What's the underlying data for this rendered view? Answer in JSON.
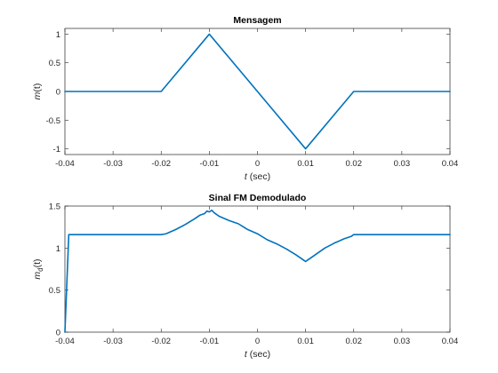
{
  "chart_data": [
    {
      "type": "line",
      "title": "Mensagem",
      "xlabel_italic": "t",
      "xlabel_rest": " (sec)",
      "ylabel_italic": "m",
      "ylabel_rest": "(t)",
      "xlim": [
        -0.04,
        0.04
      ],
      "ylim": [
        -1.1,
        1.1
      ],
      "xticks": [
        -0.04,
        -0.03,
        -0.02,
        -0.01,
        0,
        0.01,
        0.02,
        0.03,
        0.04
      ],
      "xtick_labels": [
        "-0.04",
        "-0.03",
        "-0.02",
        "-0.01",
        "0",
        "0.01",
        "0.02",
        "0.03",
        "0.04"
      ],
      "yticks": [
        -1,
        -0.5,
        0,
        0.5,
        1
      ],
      "ytick_labels": [
        "-1",
        "-0.5",
        "0",
        "0.5",
        "1"
      ],
      "grid": false,
      "color": "#0072BD",
      "series": [
        {
          "x": [
            -0.04,
            -0.02,
            -0.01,
            0.01,
            0.02,
            0.04
          ],
          "y": [
            0,
            0,
            1,
            -1,
            0,
            0
          ]
        }
      ]
    },
    {
      "type": "line",
      "title": "Sinal FM Demodulado",
      "xlabel_italic": "t",
      "xlabel_rest": " (sec)",
      "ylabel_italic": "m",
      "ylabel_sub": "d",
      "ylabel_rest": "(t)",
      "xlim": [
        -0.04,
        0.04
      ],
      "ylim": [
        0,
        1.5
      ],
      "xticks": [
        -0.04,
        -0.03,
        -0.02,
        -0.01,
        0,
        0.01,
        0.02,
        0.03,
        0.04
      ],
      "xtick_labels": [
        "-0.04",
        "-0.03",
        "-0.02",
        "-0.01",
        "0",
        "0.01",
        "0.02",
        "0.03",
        "0.04"
      ],
      "yticks": [
        0,
        0.5,
        1,
        1.5
      ],
      "ytick_labels": [
        "0",
        "0.5",
        "1",
        "1.5"
      ],
      "grid": false,
      "color": "#0072BD",
      "series": [
        {
          "x": [
            -0.04,
            -0.0392,
            -0.0385,
            -0.035,
            -0.03,
            -0.025,
            -0.02,
            -0.019,
            -0.017,
            -0.015,
            -0.013,
            -0.012,
            -0.011,
            -0.0105,
            -0.01,
            -0.0095,
            -0.009,
            -0.008,
            -0.006,
            -0.004,
            -0.002,
            0,
            0.002,
            0.004,
            0.006,
            0.008,
            0.0095,
            0.01,
            0.0105,
            0.012,
            0.014,
            0.016,
            0.018,
            0.0195,
            0.02,
            0.0205,
            0.025,
            0.03,
            0.035,
            0.04
          ],
          "y": [
            0,
            1.16,
            1.16,
            1.16,
            1.16,
            1.16,
            1.16,
            1.17,
            1.22,
            1.28,
            1.35,
            1.39,
            1.41,
            1.44,
            1.43,
            1.45,
            1.42,
            1.38,
            1.33,
            1.29,
            1.22,
            1.17,
            1.1,
            1.05,
            0.99,
            0.92,
            0.86,
            0.84,
            0.86,
            0.92,
            1.0,
            1.06,
            1.11,
            1.14,
            1.16,
            1.16,
            1.16,
            1.16,
            1.16,
            1.16
          ]
        }
      ]
    }
  ]
}
